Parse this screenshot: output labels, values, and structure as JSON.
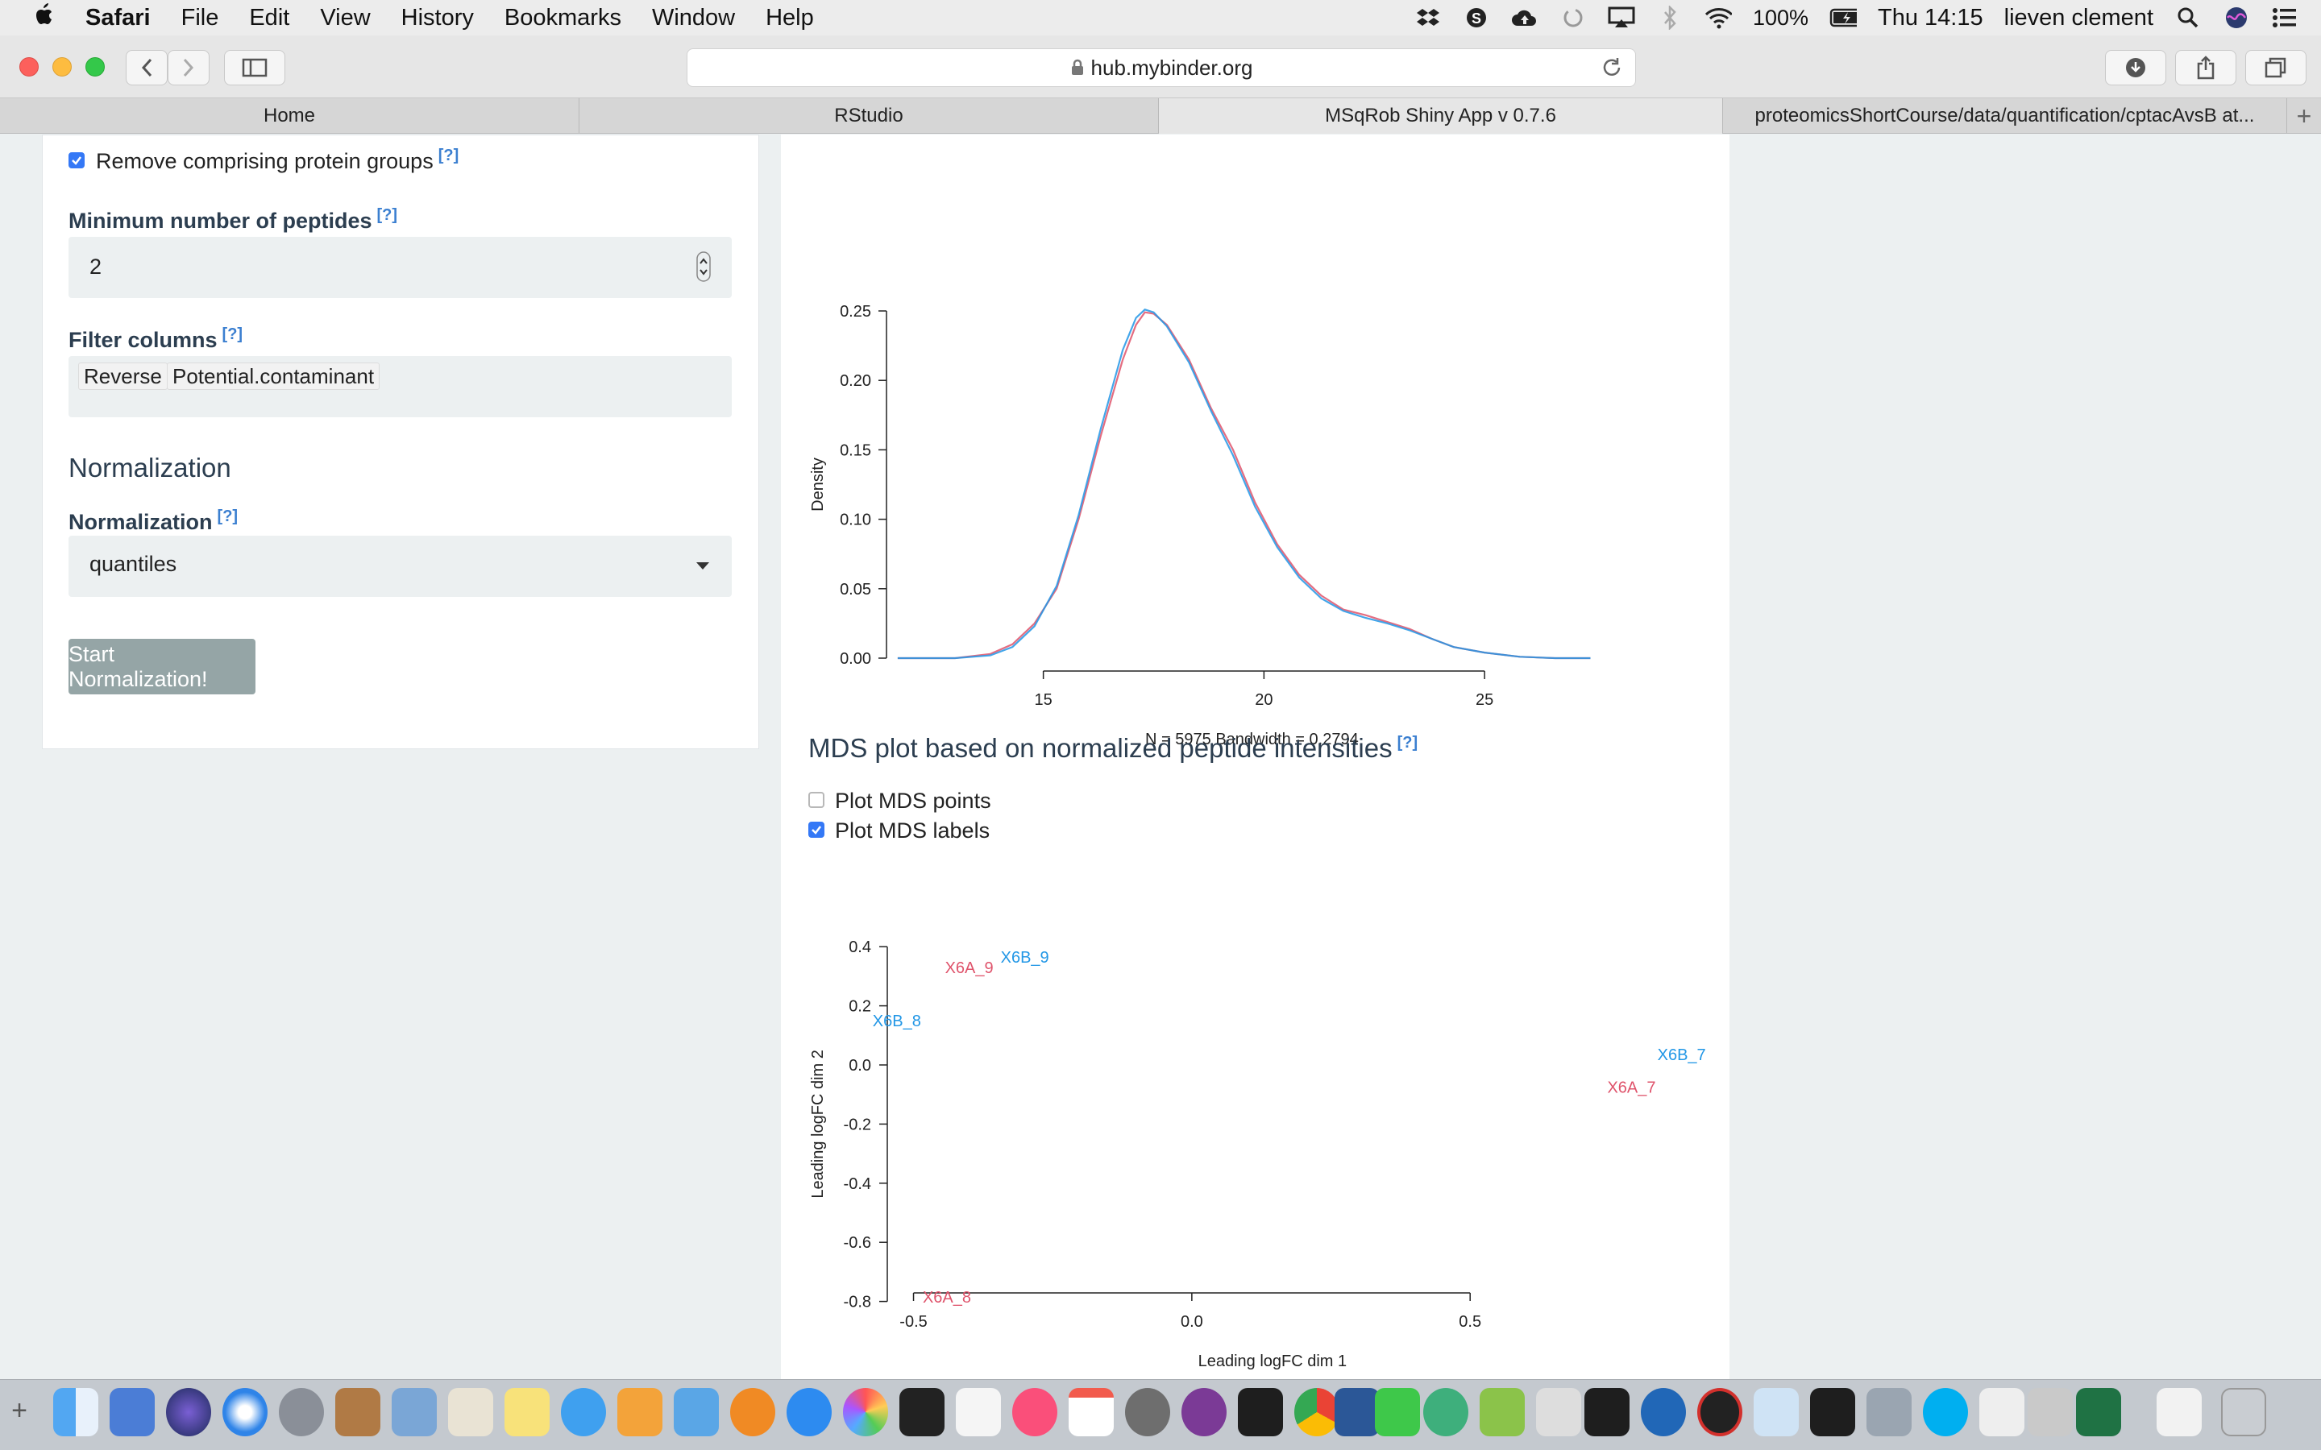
{
  "menubar": {
    "apple_icon": "apple-icon",
    "items": [
      "Safari",
      "File",
      "Edit",
      "View",
      "History",
      "Bookmarks",
      "Window",
      "Help"
    ],
    "battery": "100%",
    "clock": "Thu 14:15",
    "user": "lieven clement"
  },
  "browser": {
    "url": "hub.mybinder.org",
    "tabs": [
      "Home",
      "RStudio",
      "MSqRob Shiny App v 0.7.6",
      "proteomicsShortCourse/data/quantification/cptacAvsB at..."
    ],
    "active_tab": 2
  },
  "sidebar": {
    "remove_groups_label": "Remove comprising protein groups",
    "remove_groups_checked": true,
    "help": "[?]",
    "min_peptides_label": "Minimum number of peptides",
    "min_peptides_value": "2",
    "filter_columns_label": "Filter columns",
    "filter_tags": [
      "Reverse",
      "Potential.contaminant"
    ],
    "normalization_heading": "Normalization",
    "normalization_label": "Normalization",
    "normalization_value": "quantiles",
    "start_button": "Start Normalization!"
  },
  "density": {
    "ylabel": "Density",
    "footer": "N = 5975   Bandwidth = 0.2794"
  },
  "mds": {
    "title": "MDS plot based on normalized peptide intensities",
    "help": "[?]",
    "plot_points_label": "Plot MDS points",
    "plot_points_checked": false,
    "plot_labels_label": "Plot MDS labels",
    "plot_labels_checked": true
  },
  "colors": {
    "accent_blue": "#3478f6",
    "series_red": "#df536b",
    "series_blue": "#2297e6",
    "button_grey": "#95a5a6",
    "text_dark": "#2c3e50"
  },
  "chart_data": [
    {
      "type": "line",
      "xlabel": "",
      "ylabel": "Density",
      "annotation": "N = 5975   Bandwidth = 0.2794",
      "xlim": [
        11.5,
        27.5
      ],
      "ylim": [
        0,
        0.25
      ],
      "xticks": [
        15,
        20,
        25
      ],
      "yticks": [
        0.0,
        0.05,
        0.1,
        0.15,
        0.2,
        0.25
      ],
      "series": [
        {
          "color": "#df536b",
          "x": [
            11.7,
            13.0,
            13.8,
            14.3,
            14.8,
            15.3,
            15.8,
            16.3,
            16.8,
            17.1,
            17.3,
            17.5,
            17.8,
            18.3,
            18.8,
            19.3,
            19.8,
            20.3,
            20.8,
            21.3,
            21.8,
            22.3,
            22.8,
            23.3,
            23.8,
            24.3,
            25.0,
            25.8,
            26.6,
            27.4
          ],
          "y": [
            0.0,
            0.0,
            0.003,
            0.01,
            0.025,
            0.05,
            0.1,
            0.16,
            0.215,
            0.24,
            0.249,
            0.248,
            0.24,
            0.215,
            0.18,
            0.15,
            0.112,
            0.082,
            0.06,
            0.045,
            0.035,
            0.031,
            0.026,
            0.021,
            0.014,
            0.008,
            0.004,
            0.001,
            0.0,
            0.0
          ]
        },
        {
          "color": "#2297e6",
          "x": [
            11.7,
            13.0,
            13.8,
            14.3,
            14.8,
            15.3,
            15.8,
            16.3,
            16.8,
            17.1,
            17.3,
            17.5,
            17.8,
            18.3,
            18.8,
            19.3,
            19.8,
            20.3,
            20.8,
            21.3,
            21.8,
            22.3,
            22.8,
            23.3,
            23.8,
            24.3,
            25.0,
            25.8,
            26.6,
            27.4
          ],
          "y": [
            0.0,
            0.0,
            0.002,
            0.008,
            0.023,
            0.052,
            0.103,
            0.165,
            0.222,
            0.245,
            0.251,
            0.249,
            0.239,
            0.213,
            0.178,
            0.146,
            0.109,
            0.08,
            0.058,
            0.043,
            0.034,
            0.029,
            0.025,
            0.02,
            0.014,
            0.008,
            0.004,
            0.001,
            0.0,
            0.0
          ]
        }
      ]
    },
    {
      "type": "scatter",
      "xlabel": "Leading logFC dim 1",
      "ylabel": "Leading logFC dim 2",
      "xlim": [
        -0.55,
        0.95
      ],
      "ylim": [
        -0.85,
        0.43
      ],
      "xticks": [
        -0.5,
        0.0,
        0.5
      ],
      "yticks": [
        -0.8,
        -0.6,
        -0.4,
        -0.2,
        0.0,
        0.2,
        0.4
      ],
      "points": [
        {
          "label": "X6A_9",
          "x": -0.4,
          "y": 0.33,
          "color": "#df536b"
        },
        {
          "label": "X6B_9",
          "x": -0.3,
          "y": 0.365,
          "color": "#2297e6"
        },
        {
          "label": "X6B_8",
          "x": -0.53,
          "y": 0.15,
          "color": "#2297e6"
        },
        {
          "label": "X6B_7",
          "x": 0.88,
          "y": 0.035,
          "color": "#2297e6"
        },
        {
          "label": "X6A_7",
          "x": 0.79,
          "y": -0.075,
          "color": "#df536b"
        },
        {
          "label": "X6A_8",
          "x": -0.44,
          "y": -0.785,
          "color": "#df536b"
        }
      ]
    }
  ]
}
